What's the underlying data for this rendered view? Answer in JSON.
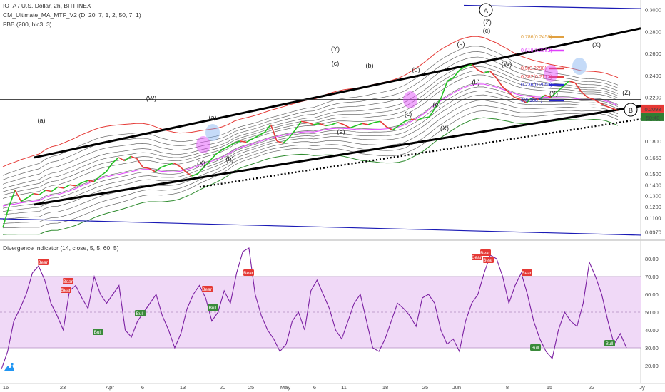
{
  "header": {
    "symbol": "IOTA / U.S. Dollar, 2h, BITFINEX",
    "study1": "CM_Ultimate_MA_MTF_V2 (D, 20, 7, 1, 2, 50, 7, 1)",
    "study2": "FBB (200, hlc3, 3)",
    "study3": "Divergence Indicator (14, close, 5, 5, 60, 5)"
  },
  "colors": {
    "price_line": "#222222",
    "band_red": "#e53935",
    "band_green": "#2e8b2e",
    "band_magenta": "#e040fb",
    "channel_black": "#000000",
    "channel_blue": "#1a1ab5",
    "rsi": "#7b1fa2",
    "rsi_band": "#f0d9f7",
    "bear_badge": "#e53935",
    "bull_badge": "#3a8a3a",
    "price_tag": "#e53935",
    "countdown_tag": "#2e7d32"
  },
  "chart_data": [
    {
      "type": "line",
      "title": "IOTA / U.S. Dollar, 2h, BITFINEX",
      "x_ticks": [
        "16",
        "23",
        "Apr",
        "6",
        "13",
        "20",
        "25",
        "May",
        "6",
        "11",
        "18",
        "25",
        "Jun",
        "8",
        "15",
        "22",
        "Jy"
      ],
      "y_ticks": [
        0.3,
        0.28,
        0.26,
        0.24,
        0.22,
        0.2,
        0.18,
        0.165,
        0.15,
        0.14,
        0.13,
        0.12,
        0.11,
        0.097
      ],
      "y_tick_labels": [
        "0.3000",
        "0.2800",
        "0.2600",
        "0.2400",
        "0.2200",
        "0.2000",
        "0.1800",
        "0.1650",
        "0.1500",
        "0.1400",
        "0.1300",
        "0.1200",
        "0.1100",
        "0.0970"
      ],
      "ylim": [
        0.092,
        0.305
      ],
      "series": [
        {
          "values": [
            0.101,
            0.12,
            0.135,
            0.125,
            0.128,
            0.132,
            0.131,
            0.135,
            0.134,
            0.138,
            0.137,
            0.14,
            0.139,
            0.142,
            0.144,
            0.143,
            0.148,
            0.152,
            0.16,
            0.165,
            0.162,
            0.166,
            0.164,
            0.156,
            0.155,
            0.152,
            0.156,
            0.158,
            0.16,
            0.157,
            0.152,
            0.148,
            0.15,
            0.156,
            0.162,
            0.168,
            0.172,
            0.175,
            0.178,
            0.18,
            0.179,
            0.182,
            0.185,
            0.188,
            0.195,
            0.18,
            0.178,
            0.183,
            0.19,
            0.198,
            0.197,
            0.195,
            0.196,
            0.194,
            0.195,
            0.197,
            0.195,
            0.192,
            0.194,
            0.196,
            0.195,
            0.197,
            0.198,
            0.193,
            0.19,
            0.194,
            0.198,
            0.2,
            0.199,
            0.201,
            0.202,
            0.21,
            0.22,
            0.235,
            0.238,
            0.245,
            0.248,
            0.25,
            0.245,
            0.242,
            0.244,
            0.238,
            0.23,
            0.225,
            0.22,
            0.218,
            0.215,
            0.22,
            0.218,
            0.222,
            0.22,
            0.225,
            0.23,
            0.235,
            0.233,
            0.225,
            0.22,
            0.218,
            0.215,
            0.212,
            0.21,
            0.208
          ]
        }
      ],
      "last_price": "0.2093",
      "countdown": "50:40"
    },
    {
      "type": "line",
      "title": "Divergence Indicator (14, close, 5, 5, 60, 5)",
      "y_ticks": [
        80,
        70,
        60,
        50,
        40,
        30,
        20
      ],
      "y_tick_labels": [
        "80.00",
        "70.00",
        "60.00",
        "50.00",
        "40.00",
        "30.00",
        "20.00"
      ],
      "ylim": [
        14,
        88
      ],
      "band": [
        30,
        70
      ],
      "series": [
        {
          "values": [
            18,
            28,
            45,
            52,
            60,
            72,
            76,
            68,
            55,
            48,
            40,
            62,
            65,
            58,
            52,
            70,
            60,
            55,
            60,
            65,
            40,
            36,
            45,
            50,
            55,
            60,
            48,
            40,
            30,
            38,
            52,
            60,
            65,
            58,
            45,
            50,
            62,
            55,
            72,
            84,
            86,
            60,
            48,
            40,
            35,
            28,
            32,
            45,
            50,
            40,
            62,
            68,
            60,
            52,
            40,
            35,
            45,
            55,
            60,
            45,
            30,
            28,
            35,
            45,
            55,
            52,
            48,
            42,
            58,
            60,
            55,
            40,
            32,
            35,
            28,
            45,
            55,
            60,
            72,
            82,
            80,
            70,
            55,
            65,
            72,
            60,
            45,
            35,
            28,
            24,
            40,
            50,
            45,
            42,
            55,
            78,
            70,
            60,
            45,
            32,
            38,
            30
          ]
        }
      ],
      "badges": [
        {
          "label": "Bear",
          "type": "bear"
        },
        {
          "label": "Bear",
          "type": "bear"
        },
        {
          "label": "Bear",
          "type": "bear"
        },
        {
          "label": "Bull",
          "type": "bull"
        },
        {
          "label": "Bull",
          "type": "bull"
        },
        {
          "label": "Bear",
          "type": "bear"
        },
        {
          "label": "Bull",
          "type": "bull"
        },
        {
          "label": "Bear",
          "type": "bear"
        },
        {
          "label": "Bear",
          "type": "bear"
        },
        {
          "label": "Bear",
          "type": "bear"
        },
        {
          "label": "Bear",
          "type": "bear"
        },
        {
          "label": "Bear",
          "type": "bear"
        },
        {
          "label": "Bull",
          "type": "bull"
        },
        {
          "label": "Bull",
          "type": "bull"
        }
      ]
    }
  ],
  "annotations": {
    "waves": [
      "(a)",
      "(W)",
      "(a)",
      "(X)",
      "(b)",
      "(Y)",
      "(c)",
      "(b)",
      "(a)",
      "(d)",
      "(c)",
      "(e)",
      "(X)",
      "(b)",
      "(a)",
      "(Z)",
      "(c)",
      "(W)",
      "(X)",
      "(Y)",
      "(Z)"
    ],
    "circle_labels": [
      "A",
      "B"
    ],
    "fib_labels": [
      "0.786(0.2458)",
      "0.618(0.2382)",
      "0.5(0.2290)",
      "0.382(0.2172)",
      "0.236(0.2050)",
      "0(0.1867)"
    ]
  }
}
